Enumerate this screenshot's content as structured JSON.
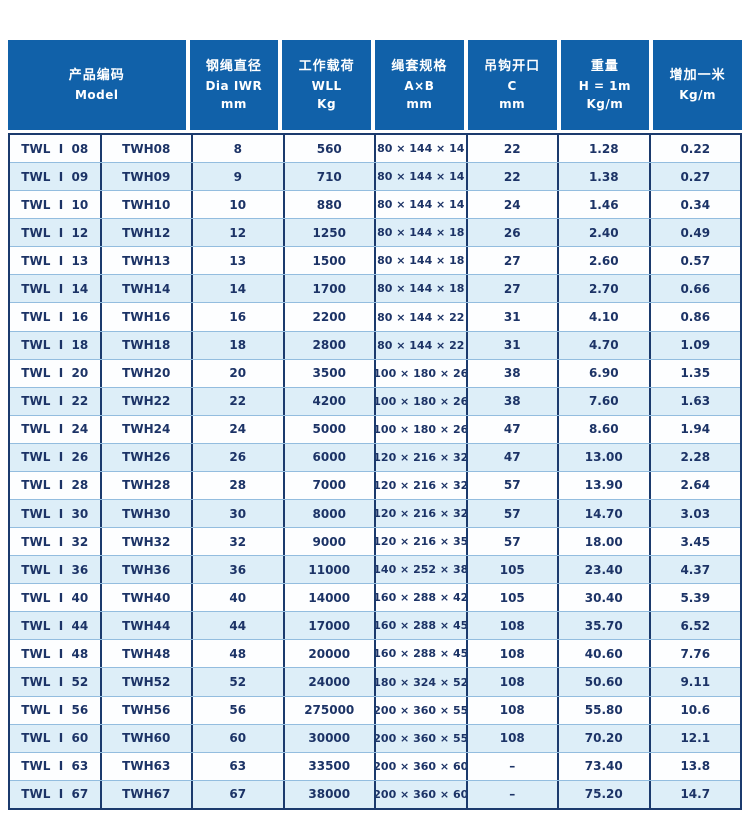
{
  "colors": {
    "header_bg": "#1161a9",
    "header_text": "#ffffff",
    "body_text": "#1c3366",
    "row_bg": "#fdfeff",
    "row_alt_bg": "#ddeef8",
    "column_border": "#1b3a6d",
    "row_border": "#93bddf"
  },
  "table": {
    "headers": [
      {
        "span": 2,
        "lines": [
          "产品编码",
          "Model"
        ]
      },
      {
        "span": 1,
        "lines": [
          "钢绳直径",
          "Dia IWR",
          "mm"
        ]
      },
      {
        "span": 1,
        "lines": [
          "工作载荷",
          "WLL",
          "Kg"
        ]
      },
      {
        "span": 1,
        "lines": [
          "绳套规格",
          "A×B",
          "mm"
        ]
      },
      {
        "span": 1,
        "lines": [
          "吊钩开口",
          "C",
          "mm"
        ]
      },
      {
        "span": 1,
        "lines": [
          "重量",
          "H = 1m",
          "Kg/m"
        ]
      },
      {
        "span": 1,
        "lines": [
          "增加一米",
          "Kg/m"
        ]
      }
    ],
    "rows": [
      [
        "TWL  I  08",
        "TWH08",
        "8",
        "560",
        "80 × 144 × 14",
        "22",
        "1.28",
        "0.22"
      ],
      [
        "TWL  I  09",
        "TWH09",
        "9",
        "710",
        "80 × 144 × 14",
        "22",
        "1.38",
        "0.27"
      ],
      [
        "TWL  I  10",
        "TWH10",
        "10",
        "880",
        "80 × 144 × 14",
        "24",
        "1.46",
        "0.34"
      ],
      [
        "TWL  I  12",
        "TWH12",
        "12",
        "1250",
        "80 × 144 × 18",
        "26",
        "2.40",
        "0.49"
      ],
      [
        "TWL  I  13",
        "TWH13",
        "13",
        "1500",
        "80 × 144 × 18",
        "27",
        "2.60",
        "0.57"
      ],
      [
        "TWL  I  14",
        "TWH14",
        "14",
        "1700",
        "80 × 144 × 18",
        "27",
        "2.70",
        "0.66"
      ],
      [
        "TWL  I  16",
        "TWH16",
        "16",
        "2200",
        "80 × 144 × 22",
        "31",
        "4.10",
        "0.86"
      ],
      [
        "TWL  I  18",
        "TWH18",
        "18",
        "2800",
        "80 × 144 × 22",
        "31",
        "4.70",
        "1.09"
      ],
      [
        "TWL  I  20",
        "TWH20",
        "20",
        "3500",
        "100 × 180 × 26",
        "38",
        "6.90",
        "1.35"
      ],
      [
        "TWL  I  22",
        "TWH22",
        "22",
        "4200",
        "100 × 180 × 26",
        "38",
        "7.60",
        "1.63"
      ],
      [
        "TWL  I  24",
        "TWH24",
        "24",
        "5000",
        "100 × 180 × 26",
        "47",
        "8.60",
        "1.94"
      ],
      [
        "TWL  I  26",
        "TWH26",
        "26",
        "6000",
        "120 × 216 × 32",
        "47",
        "13.00",
        "2.28"
      ],
      [
        "TWL  I  28",
        "TWH28",
        "28",
        "7000",
        "120 × 216 × 32",
        "57",
        "13.90",
        "2.64"
      ],
      [
        "TWL  I  30",
        "TWH30",
        "30",
        "8000",
        "120 × 216 × 32",
        "57",
        "14.70",
        "3.03"
      ],
      [
        "TWL  I  32",
        "TWH32",
        "32",
        "9000",
        "120 × 216 × 35",
        "57",
        "18.00",
        "3.45"
      ],
      [
        "TWL  I  36",
        "TWH36",
        "36",
        "11000",
        "140 × 252 × 38",
        "105",
        "23.40",
        "4.37"
      ],
      [
        "TWL  I  40",
        "TWH40",
        "40",
        "14000",
        "160 × 288 × 42",
        "105",
        "30.40",
        "5.39"
      ],
      [
        "TWL  I  44",
        "TWH44",
        "44",
        "17000",
        "160 × 288 × 45",
        "108",
        "35.70",
        "6.52"
      ],
      [
        "TWL  I  48",
        "TWH48",
        "48",
        "20000",
        "160 × 288 × 45",
        "108",
        "40.60",
        "7.76"
      ],
      [
        "TWL  I  52",
        "TWH52",
        "52",
        "24000",
        "180 × 324 × 52",
        "108",
        "50.60",
        "9.11"
      ],
      [
        "TWL  I  56",
        "TWH56",
        "56",
        "275000",
        "200 × 360 × 55",
        "108",
        "55.80",
        "10.6"
      ],
      [
        "TWL  I  60",
        "TWH60",
        "60",
        "30000",
        "200 × 360 × 55",
        "108",
        "70.20",
        "12.1"
      ],
      [
        "TWL  I  63",
        "TWH63",
        "63",
        "33500",
        "200 × 360 × 60",
        "–",
        "73.40",
        "13.8"
      ],
      [
        "TWL  I  67",
        "TWH67",
        "67",
        "38000",
        "200 × 360 × 60",
        "–",
        "75.20",
        "14.7"
      ]
    ]
  }
}
